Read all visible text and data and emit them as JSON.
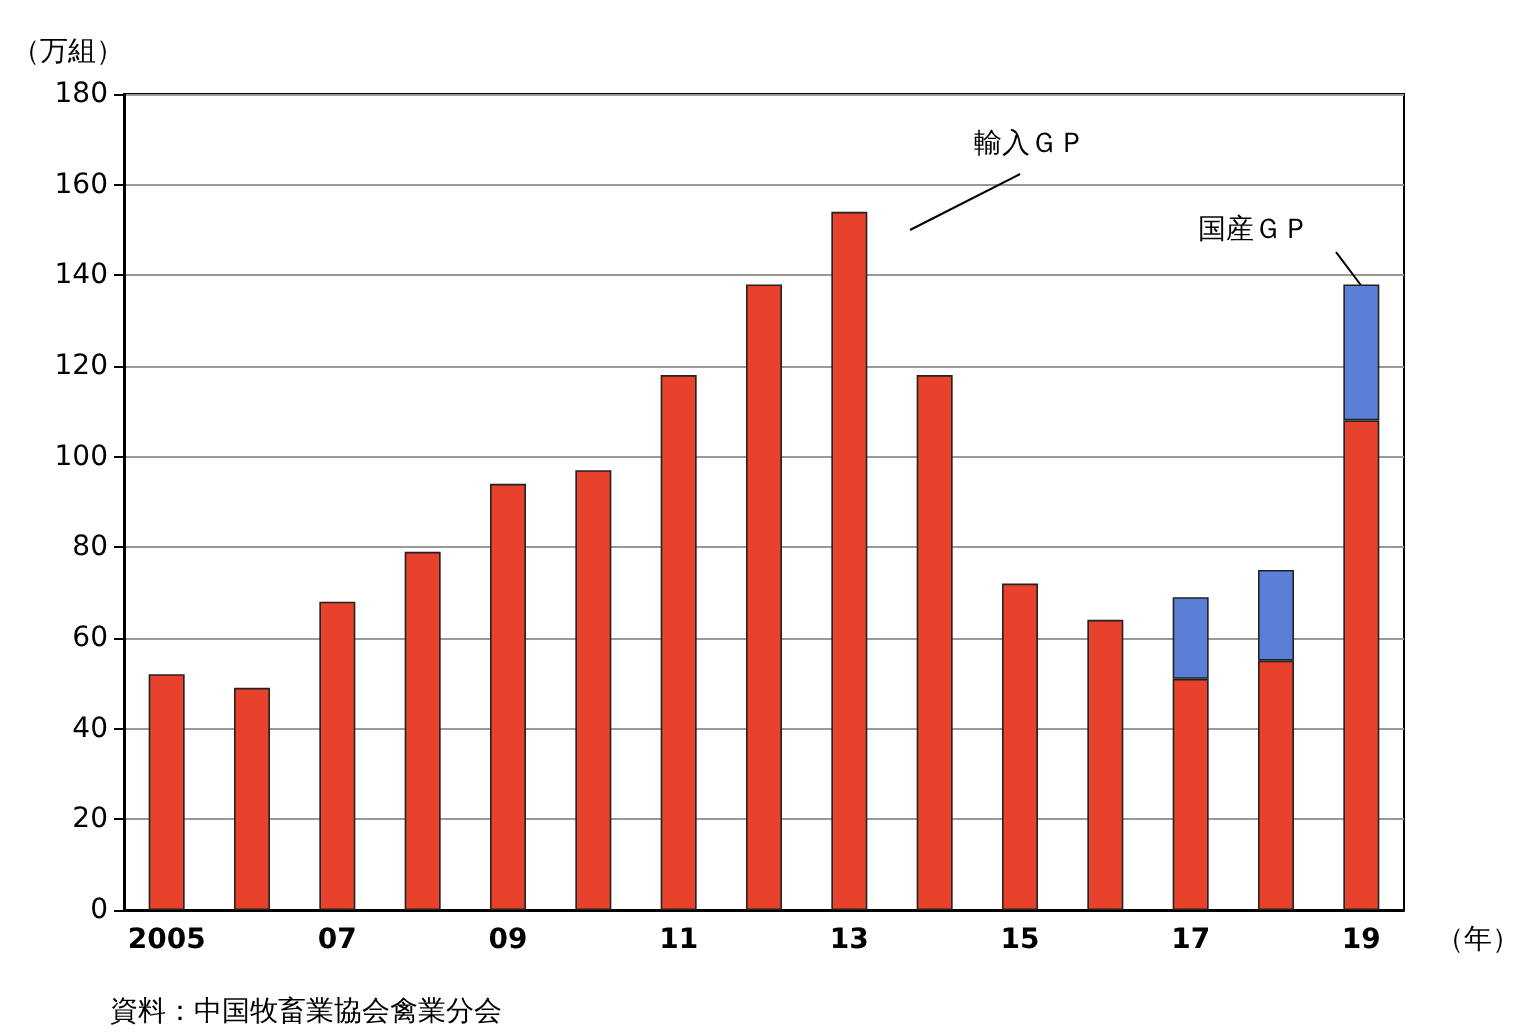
{
  "chart_data": {
    "type": "bar",
    "stacked": true,
    "xlabel": "（年）",
    "ylabel": "（万組）",
    "categories": [
      "2005",
      null,
      "07",
      null,
      "09",
      null,
      "11",
      null,
      "13",
      null,
      "15",
      null,
      "17",
      null,
      "19"
    ],
    "series": [
      {
        "color": "#e8412c",
        "values": [
          52,
          49,
          68,
          79,
          94,
          97,
          118,
          138,
          154,
          118,
          72,
          64,
          51,
          55,
          108
        ]
      },
      {
        "color": "#5b7fd6",
        "values": [
          null,
          null,
          null,
          null,
          null,
          null,
          null,
          null,
          null,
          null,
          null,
          null,
          18,
          20,
          30
        ]
      }
    ],
    "ylim": [
      0,
      180
    ],
    "yticks": [
      0,
      20,
      40,
      60,
      80,
      100,
      120,
      140,
      160,
      180
    ],
    "grid": "y",
    "annotations": [
      "輸入ＧＰ",
      "国産ＧＰ",
      "資料：中国牧畜業協会禽業分会"
    ]
  }
}
